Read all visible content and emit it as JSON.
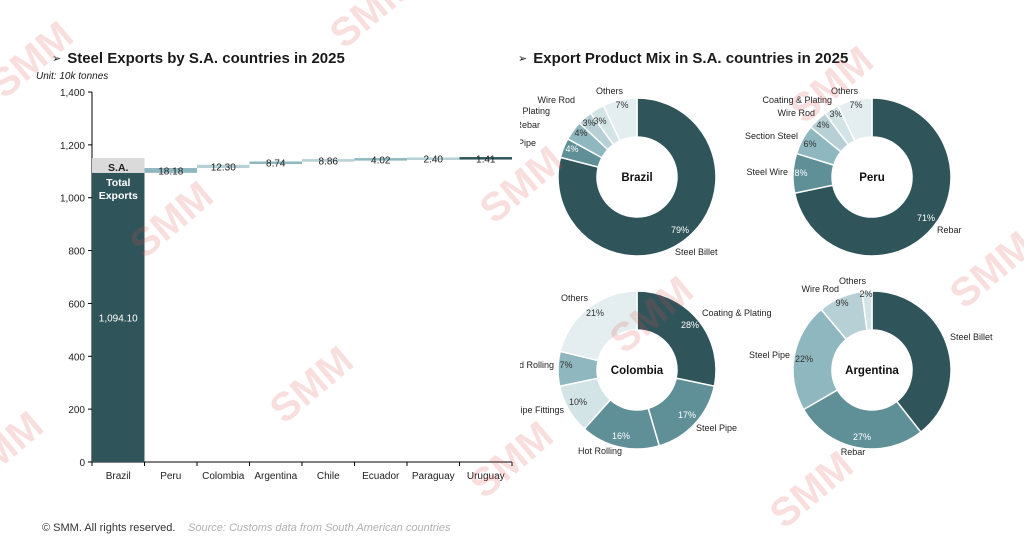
{
  "titles": {
    "left": "Steel Exports by S.A. countries in 2025",
    "right": "Export Product Mix in S.A. countries in 2025",
    "arrow": "➢"
  },
  "unit_label": "Unit: 10k tonnes",
  "footer": {
    "copyright": "© SMM. All rights reserved.",
    "source": "Source: Customs data from South American countries"
  },
  "watermark": "SMM",
  "colors": {
    "dark": "#2f555a",
    "mid": "#5f8f97",
    "light": "#8fb7bf",
    "lighter": "#b6d0d5",
    "lightest": "#d3e4e7",
    "pale": "#e4eef0",
    "total_gray": "#dadada",
    "watermark": "#e24c4c"
  },
  "chart_data": [
    {
      "type": "bar",
      "subtype": "waterfall",
      "categories": [
        "Brazil",
        "Peru",
        "Colombia",
        "Argentina",
        "Chile",
        "Ecuador",
        "Paraguay",
        "Uruguay"
      ],
      "values": [
        1094.1,
        18.18,
        12.3,
        8.74,
        8.86,
        4.02,
        2.4,
        1.41
      ],
      "value_labels": [
        "1,094.10",
        "18.18",
        "12.30",
        "8.74",
        "8.86",
        "4.02",
        "2.40",
        "1.41"
      ],
      "total_label": "S.A. Total Exports",
      "total_label_lines": [
        "S.A.",
        "Total",
        "Exports"
      ],
      "ylim": [
        0,
        1400
      ],
      "yticks": [
        0,
        200,
        400,
        600,
        800,
        1000,
        1200,
        1400
      ],
      "ytick_labels": [
        "0",
        "200",
        "400",
        "600",
        "800",
        "1,000",
        "1,200",
        "1,400"
      ],
      "grid": false
    },
    {
      "type": "pie",
      "donut": true,
      "center_label": "Brazil",
      "slices": [
        {
          "label": "Steel Billet",
          "value": 79,
          "pct": "79%"
        },
        {
          "label": "Steel Pipe",
          "value": 4,
          "pct": "4%"
        },
        {
          "label": "Rebar",
          "value": 4,
          "pct": "4%"
        },
        {
          "label": "Coating & Plating",
          "value": 3,
          "pct": "3%"
        },
        {
          "label": "Wire Rod",
          "value": 3,
          "pct": "3%"
        },
        {
          "label": "Others",
          "value": 7,
          "pct": "7%"
        }
      ]
    },
    {
      "type": "pie",
      "donut": true,
      "center_label": "Peru",
      "slices": [
        {
          "label": "Rebar",
          "value": 71,
          "pct": "71%"
        },
        {
          "label": "Steel Wire",
          "value": 8,
          "pct": "8%"
        },
        {
          "label": "Section Steel",
          "value": 6,
          "pct": "6%"
        },
        {
          "label": "Coating & Plating",
          "value": 4,
          "pct": "4%"
        },
        {
          "label": "Wire Rod",
          "value": 3,
          "pct": "3%"
        },
        {
          "label": "Others",
          "value": 7,
          "pct": "7%"
        }
      ]
    },
    {
      "type": "pie",
      "donut": true,
      "center_label": "Colombia",
      "slices": [
        {
          "label": "Coating & Plating",
          "value": 28,
          "pct": "28%"
        },
        {
          "label": "Steel Pipe",
          "value": 17,
          "pct": "17%"
        },
        {
          "label": "Hot Rolling",
          "value": 16,
          "pct": "16%"
        },
        {
          "label": "Steel Pipe Fittings",
          "value": 10,
          "pct": "10%"
        },
        {
          "label": "Cold Rolling",
          "value": 7,
          "pct": "7%"
        },
        {
          "label": "Others",
          "value": 21,
          "pct": "21%"
        }
      ]
    },
    {
      "type": "pie",
      "donut": true,
      "center_label": "Argentina",
      "slices": [
        {
          "label": "Steel Billet",
          "value": 39,
          "pct": "39%"
        },
        {
          "label": "Rebar",
          "value": 27,
          "pct": "27%"
        },
        {
          "label": "Steel Pipe",
          "value": 22,
          "pct": "22%"
        },
        {
          "label": "Wire Rod",
          "value": 9,
          "pct": "9%"
        },
        {
          "label": "Others",
          "value": 2,
          "pct": "2%"
        }
      ]
    }
  ]
}
